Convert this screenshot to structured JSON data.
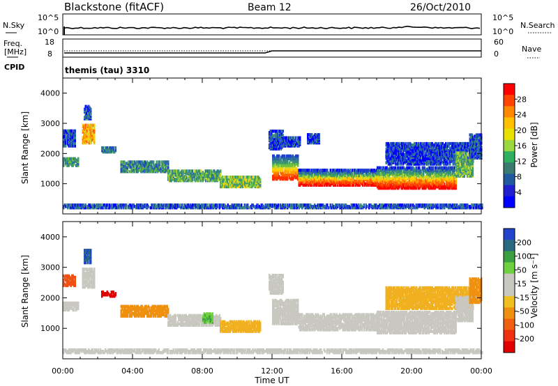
{
  "header": {
    "station": "Blackstone (fitACF)",
    "beam": "Beam 12",
    "date": "26/Oct/2010"
  },
  "noise_panel": {
    "left_label": "N.Sky",
    "right_label": "N.Search",
    "left_ticks": [
      "10^5",
      "10^0"
    ],
    "right_ticks": [
      "10^5",
      "10^0"
    ]
  },
  "freq_panel": {
    "left_label_1": "Freq.",
    "left_label_2": "[MHz]",
    "left_ticks": [
      "18",
      "8"
    ],
    "right_label": "Nave",
    "right_ticks": [
      "60",
      "0"
    ]
  },
  "cpid_panel": {
    "label": "CPID",
    "text": "themis (tau) 3310"
  },
  "power_colorbar": {
    "label": "Power [dB]",
    "ticks": [
      "28",
      "24",
      "20",
      "16",
      "12",
      "8",
      "4"
    ],
    "colors": [
      "#ff0000",
      "#ff4400",
      "#ff8800",
      "#ffc000",
      "#e8e000",
      "#9ad840",
      "#2fb060",
      "#3a7a70",
      "#1f5aa0",
      "#1f1fd0",
      "#0000ff"
    ]
  },
  "velocity_colorbar": {
    "label": "Velocity [m s⁻¹]",
    "ticks": [
      "200",
      "100",
      "50",
      "15",
      "-15",
      "-50",
      "-100",
      "-200"
    ],
    "colors": [
      "#2244cc",
      "#2a6a80",
      "#3aa040",
      "#6ed040",
      "#c8c8c0",
      "#c8c8c0",
      "#f0c020",
      "#f09010",
      "#f06010",
      "#f03010",
      "#e00000"
    ]
  },
  "chart_data": [
    {
      "type": "heatmap",
      "name": "Power",
      "ylabel": "Slant Range [km]",
      "xlabel": "Time UT",
      "x_ticks": [
        "00:00",
        "04:00",
        "08:00",
        "12:00",
        "16:00",
        "20:00",
        "00:00"
      ],
      "y_ticks": [
        "1000",
        "2000",
        "3000",
        "4000"
      ],
      "ylim": [
        0,
        4500
      ],
      "xlim_hours": [
        0,
        24
      ],
      "echo_bands": [
        {
          "t0": 0.0,
          "t1": 0.9,
          "r0": 1550,
          "r1": 1800,
          "power": 10
        },
        {
          "t0": 0.0,
          "t1": 0.7,
          "r0": 2200,
          "r1": 2700,
          "power": 6
        },
        {
          "t0": 1.1,
          "t1": 1.8,
          "r0": 2300,
          "r1": 2900,
          "power": 18
        },
        {
          "t0": 1.2,
          "t1": 1.6,
          "r0": 3100,
          "r1": 3550,
          "power": 6
        },
        {
          "t0": 2.2,
          "t1": 3.0,
          "r0": 2000,
          "r1": 2150,
          "power": 8
        },
        {
          "t0": 3.3,
          "t1": 6.0,
          "r0": 1350,
          "r1": 1700,
          "power": 9
        },
        {
          "t0": 6.0,
          "t1": 9.0,
          "r0": 1050,
          "r1": 1400,
          "power": 11
        },
        {
          "t0": 9.0,
          "t1": 11.3,
          "r0": 850,
          "r1": 1200,
          "power": 13
        },
        {
          "t0": 11.8,
          "t1": 12.6,
          "r0": 2100,
          "r1": 2700,
          "power": 6
        },
        {
          "t0": 12.6,
          "t1": 13.6,
          "r0": 2200,
          "r1": 2500,
          "power": 5
        },
        {
          "t0": 14.0,
          "t1": 14.7,
          "r0": 2300,
          "r1": 2600,
          "power": 5
        },
        {
          "t0": 12.0,
          "t1": 13.5,
          "r0": 1100,
          "r1": 1900,
          "power": 22
        },
        {
          "t0": 13.5,
          "t1": 18.0,
          "r0": 900,
          "r1": 1400,
          "power": 24
        },
        {
          "t0": 18.0,
          "t1": 22.5,
          "r0": 800,
          "r1": 1500,
          "power": 26
        },
        {
          "t0": 18.5,
          "t1": 23.5,
          "r0": 1600,
          "r1": 2300,
          "power": 5
        },
        {
          "t0": 22.5,
          "t1": 23.5,
          "r0": 1200,
          "r1": 2000,
          "power": 12
        },
        {
          "t0": 23.3,
          "t1": 24.0,
          "r0": 1800,
          "r1": 2600,
          "power": 6
        },
        {
          "t0": 0.0,
          "t1": 24.0,
          "r0": 150,
          "r1": 260,
          "power": 6
        }
      ]
    },
    {
      "type": "heatmap",
      "name": "Velocity",
      "ylabel": "Slant Range [km]",
      "xlabel": "Time UT",
      "x_ticks": [
        "00:00",
        "04:00",
        "08:00",
        "12:00",
        "16:00",
        "20:00",
        "00:00"
      ],
      "y_ticks": [
        "1000",
        "2000",
        "3000",
        "4000"
      ],
      "ylim": [
        0,
        4500
      ],
      "xlim_hours": [
        0,
        24
      ],
      "echo_bands": [
        {
          "t0": 0.0,
          "t1": 0.9,
          "r0": 1550,
          "r1": 1800,
          "velocity": 0
        },
        {
          "t0": 0.0,
          "t1": 0.7,
          "r0": 2350,
          "r1": 2700,
          "velocity": -150
        },
        {
          "t0": 1.1,
          "t1": 1.8,
          "r0": 2300,
          "r1": 2900,
          "velocity": 0
        },
        {
          "t0": 1.2,
          "t1": 1.6,
          "r0": 3100,
          "r1": 3550,
          "velocity": 150
        },
        {
          "t0": 2.2,
          "t1": 3.0,
          "r0": 2000,
          "r1": 2150,
          "velocity": -200
        },
        {
          "t0": 3.3,
          "t1": 6.0,
          "r0": 1350,
          "r1": 1700,
          "velocity": -60
        },
        {
          "t0": 6.0,
          "t1": 9.0,
          "r0": 1050,
          "r1": 1400,
          "velocity": 0
        },
        {
          "t0": 8.0,
          "t1": 8.6,
          "r0": 1150,
          "r1": 1450,
          "velocity": 30
        },
        {
          "t0": 9.0,
          "t1": 11.3,
          "r0": 850,
          "r1": 1200,
          "velocity": -30
        },
        {
          "t0": 11.8,
          "t1": 12.6,
          "r0": 2100,
          "r1": 2700,
          "velocity": 0
        },
        {
          "t0": 12.0,
          "t1": 13.5,
          "r0": 1100,
          "r1": 1900,
          "velocity": 0
        },
        {
          "t0": 13.5,
          "t1": 18.0,
          "r0": 900,
          "r1": 1400,
          "velocity": 0
        },
        {
          "t0": 18.0,
          "t1": 22.5,
          "r0": 800,
          "r1": 1500,
          "velocity": 0
        },
        {
          "t0": 18.5,
          "t1": 23.5,
          "r0": 1600,
          "r1": 2300,
          "velocity": -30
        },
        {
          "t0": 22.5,
          "t1": 23.5,
          "r0": 1200,
          "r1": 2000,
          "velocity": 0
        },
        {
          "t0": 23.3,
          "t1": 24.0,
          "r0": 1800,
          "r1": 2600,
          "velocity": -60
        },
        {
          "t0": 0.0,
          "t1": 24.0,
          "r0": 150,
          "r1": 260,
          "velocity": 0
        }
      ]
    }
  ]
}
